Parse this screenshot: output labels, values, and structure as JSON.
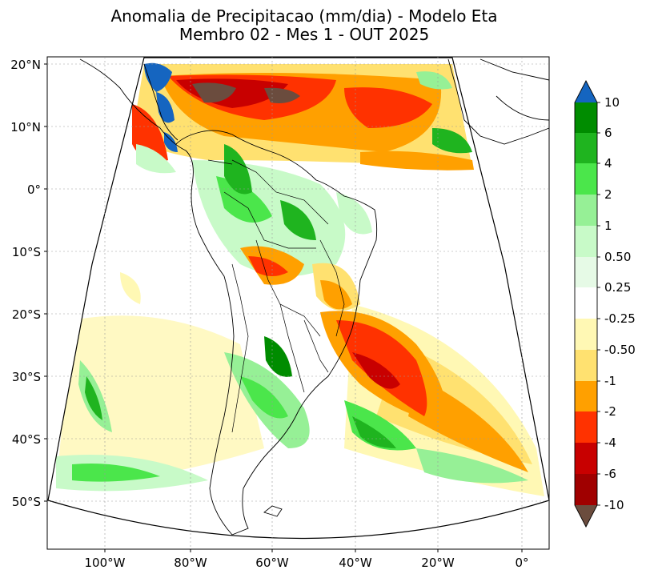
{
  "title": {
    "line1": "Anomalia de Precipitacao (mm/dia) - Modelo Eta",
    "line2": "Membro 02 - Mes 1 - OUT 2025"
  },
  "axes": {
    "lat_labels": [
      "20°N",
      "10°N",
      "0°",
      "10°S",
      "20°S",
      "30°S",
      "40°S",
      "50°S"
    ],
    "lon_labels": [
      "100°W",
      "80°W",
      "60°W",
      "40°W",
      "20°W",
      "0°"
    ]
  },
  "colorbar": {
    "labels": [
      "10",
      "6",
      "4",
      "2",
      "1",
      "0.50",
      "0.25",
      "-0.25",
      "-0.50",
      "-1",
      "-2",
      "-4",
      "-6",
      "-10"
    ],
    "colors": {
      "over": "#1565c0",
      "b_6_10": "#008c00",
      "b_4_6": "#1fb41f",
      "b_2_4": "#4be64b",
      "b_1_2": "#96f096",
      "b_05_1": "#c8fac8",
      "b_025_05": "#e6fae6",
      "b_neutral": "#ffffff",
      "b_m05_m025": "#fff8b4",
      "b_m1_m05": "#ffe170",
      "b_m2_m1": "#ffa000",
      "b_m4_m2": "#ff3200",
      "b_m6_m4": "#c80000",
      "b_m10_m6": "#a00000",
      "under": "#6b4c3e"
    }
  }
}
